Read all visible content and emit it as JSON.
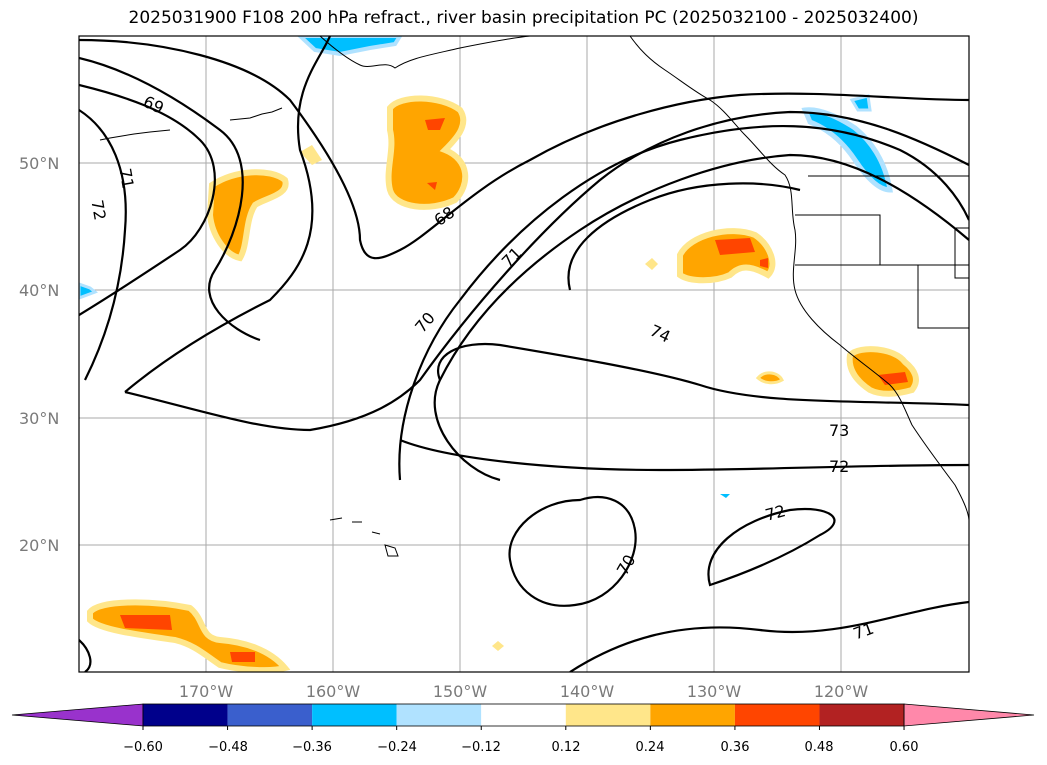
{
  "title": "2025031900 F108 200 hPa refract., river basin precipitation PC (2025032100 - 2025032400)",
  "map": {
    "lat_labels": [
      "50°N",
      "40°N",
      "30°N",
      "20°N"
    ],
    "lon_labels": [
      "170°W",
      "160°W",
      "150°W",
      "140°W",
      "130°W",
      "120°W"
    ]
  },
  "contours": {
    "labels": [
      "69",
      "71",
      "72",
      "68",
      "71",
      "70",
      "74",
      "73",
      "72",
      "72",
      "70",
      "71"
    ]
  },
  "colorbar": {
    "ticks": [
      "−0.60",
      "−0.48",
      "−0.36",
      "−0.24",
      "−0.12",
      "0.12",
      "0.24",
      "0.36",
      "0.48",
      "0.60"
    ],
    "colors": [
      "#9932cc",
      "#00008b",
      "#3a5fcd",
      "#00bfff",
      "#b0e2ff",
      "#ffffff",
      "#ffe68a",
      "#ffa500",
      "#ff4500",
      "#b22222",
      "#ff88aa"
    ]
  },
  "shading_colors": {
    "light_yellow": "#ffe68a",
    "orange": "#ffa500",
    "red_orange": "#ff4500",
    "deep_sky_blue": "#00bfff",
    "light_blue": "#b0e2ff"
  }
}
